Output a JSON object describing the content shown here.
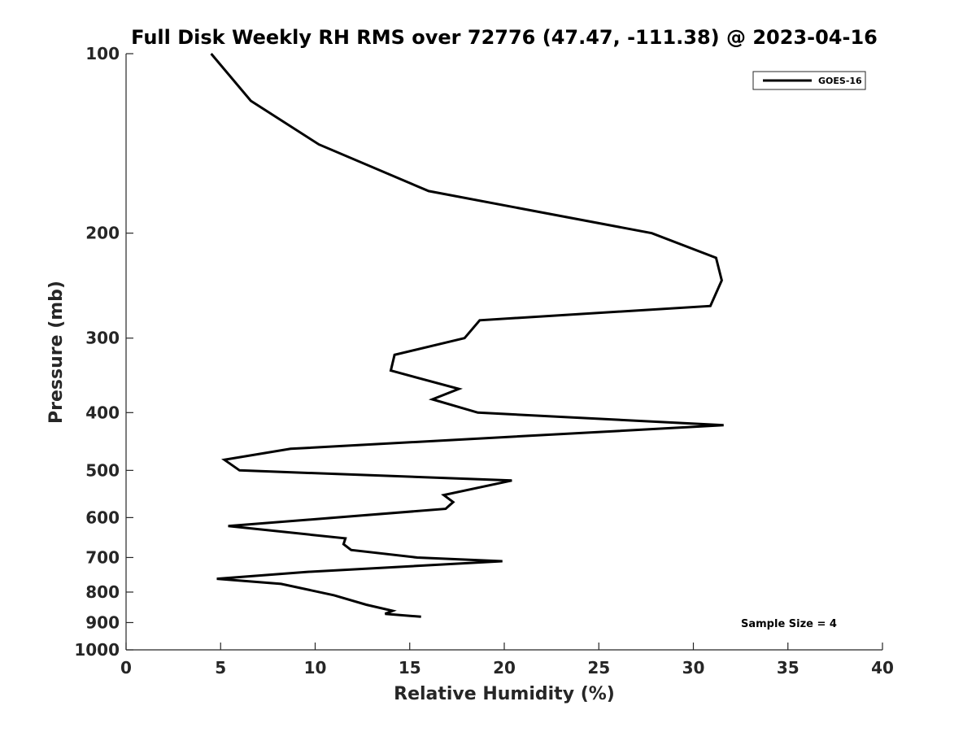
{
  "chart_data": {
    "type": "line",
    "title": "Full Disk Weekly RH RMS over 72776 (47.47, -111.38) @ 2023-04-16",
    "xlabel": "Relative Humidity (%)",
    "ylabel": "Pressure (mb)",
    "xlim": [
      0,
      40
    ],
    "ylim": [
      100,
      1000
    ],
    "yscale": "log",
    "y_reversed": true,
    "grid": false,
    "legend_position": "top-right",
    "x_ticks": [
      "0",
      "5",
      "10",
      "15",
      "20",
      "25",
      "30",
      "35",
      "40"
    ],
    "y_ticks": [
      "100",
      "200",
      "300",
      "400",
      "500",
      "600",
      "700",
      "800",
      "900",
      "1000"
    ],
    "annotation": "Sample Size = 4",
    "series": [
      {
        "name": "GOES-16",
        "color": "#000000",
        "points": [
          {
            "x": 4.5,
            "y": 100
          },
          {
            "x": 6.6,
            "y": 120
          },
          {
            "x": 10.2,
            "y": 142
          },
          {
            "x": 16.0,
            "y": 170
          },
          {
            "x": 27.8,
            "y": 200
          },
          {
            "x": 31.2,
            "y": 220
          },
          {
            "x": 31.5,
            "y": 240
          },
          {
            "x": 30.9,
            "y": 265
          },
          {
            "x": 18.7,
            "y": 280
          },
          {
            "x": 17.9,
            "y": 300
          },
          {
            "x": 14.2,
            "y": 320
          },
          {
            "x": 14.0,
            "y": 340
          },
          {
            "x": 17.6,
            "y": 365
          },
          {
            "x": 16.2,
            "y": 380
          },
          {
            "x": 18.6,
            "y": 400
          },
          {
            "x": 31.6,
            "y": 420
          },
          {
            "x": 8.7,
            "y": 460
          },
          {
            "x": 5.2,
            "y": 480
          },
          {
            "x": 6.0,
            "y": 500
          },
          {
            "x": 20.4,
            "y": 520
          },
          {
            "x": 16.8,
            "y": 550
          },
          {
            "x": 17.3,
            "y": 565
          },
          {
            "x": 16.9,
            "y": 580
          },
          {
            "x": 5.4,
            "y": 620
          },
          {
            "x": 11.6,
            "y": 650
          },
          {
            "x": 11.5,
            "y": 665
          },
          {
            "x": 11.9,
            "y": 680
          },
          {
            "x": 15.4,
            "y": 700
          },
          {
            "x": 19.9,
            "y": 710
          },
          {
            "x": 9.6,
            "y": 740
          },
          {
            "x": 4.8,
            "y": 760
          },
          {
            "x": 8.2,
            "y": 775
          },
          {
            "x": 11.0,
            "y": 810
          },
          {
            "x": 12.7,
            "y": 840
          },
          {
            "x": 14.1,
            "y": 860
          },
          {
            "x": 13.7,
            "y": 870
          },
          {
            "x": 15.6,
            "y": 880
          }
        ]
      }
    ]
  }
}
